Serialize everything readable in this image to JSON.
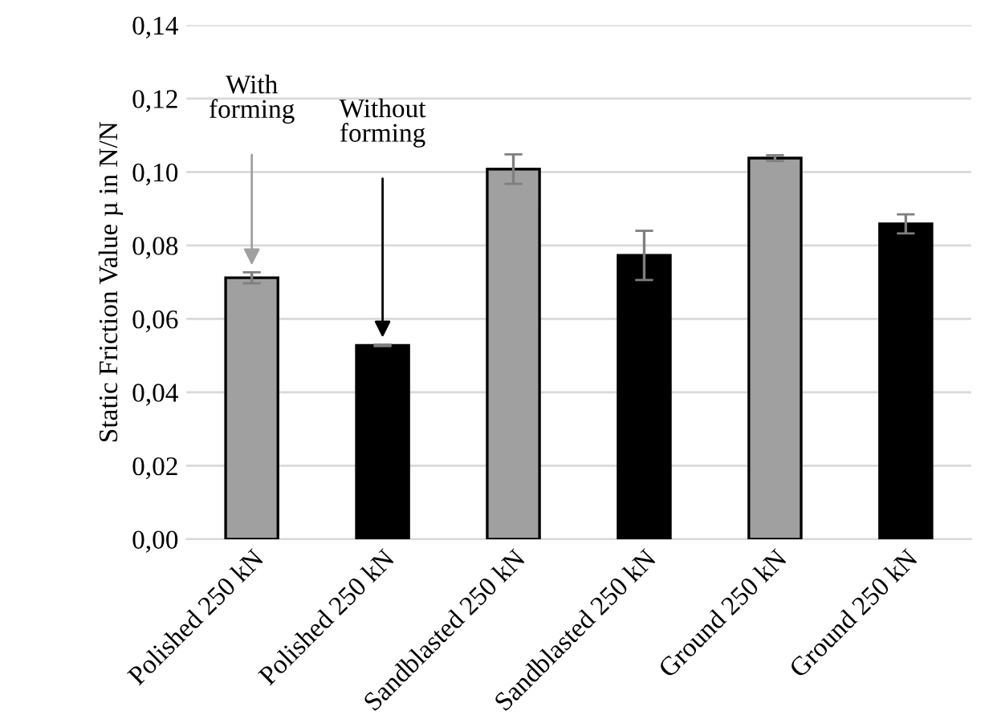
{
  "chart_data": {
    "type": "bar",
    "ylabel": "Static Friction Value µ in N/N",
    "categories": [
      "Polished 250 kN",
      "Polished 250 kN",
      "Sandblasted 250 kN",
      "Sandblasted 250 kN",
      "Ground 250 kN",
      "Ground 250 kN"
    ],
    "values": [
      0.0712,
      0.0528,
      0.1008,
      0.0773,
      0.1038,
      0.0859
    ],
    "errors": [
      0.0015,
      0.0002,
      0.004,
      0.0067,
      0.0008,
      0.0026
    ],
    "colors": [
      "#a0a0a0",
      "#000000",
      "#a0a0a0",
      "#000000",
      "#a0a0a0",
      "#000000"
    ],
    "annotations": [
      "With\nforming",
      "Without\nforming"
    ],
    "ylim": [
      0,
      0.14
    ],
    "yticks": [
      {
        "value": 0,
        "label": "0,00"
      },
      {
        "value": 0.02,
        "label": "0,02"
      },
      {
        "value": 0.04,
        "label": "0,04"
      },
      {
        "value": 0.06,
        "label": "0,06"
      },
      {
        "value": 0.08,
        "label": "0,08"
      },
      {
        "value": 0.1,
        "label": "0,10"
      },
      {
        "value": 0.12,
        "label": "0,12"
      },
      {
        "value": 0.14,
        "label": "0,14"
      }
    ],
    "grid": "y"
  }
}
